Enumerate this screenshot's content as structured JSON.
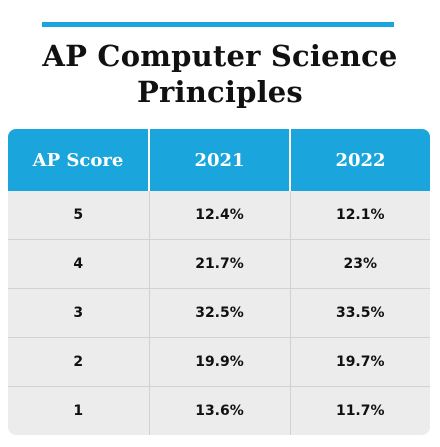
{
  "title": {
    "line1": "AP Computer Science",
    "line2": "Principles"
  },
  "colors": {
    "accent": "#1aa6dd",
    "row_background": "#ececec",
    "text": "#111111"
  },
  "table": {
    "headers": [
      "AP Score",
      "2021",
      "2022"
    ],
    "rows": [
      [
        "5",
        "12.4%",
        "12.1%"
      ],
      [
        "4",
        "21.7%",
        "23%"
      ],
      [
        "3",
        "32.5%",
        "33.5%"
      ],
      [
        "2",
        "19.9%",
        "19.7%"
      ],
      [
        "1",
        "13.6%",
        "11.7%"
      ]
    ]
  }
}
